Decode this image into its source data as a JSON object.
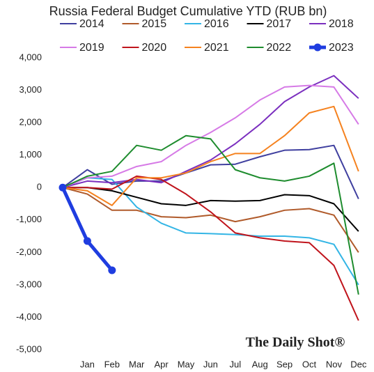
{
  "chart_data": {
    "type": "line",
    "title": "Russia Federal Budget Cumulative YTD (RUB bn)",
    "watermark": "The Daily Shot®",
    "categories": [
      null,
      "Jan",
      "Feb",
      "Mar",
      "Apr",
      "May",
      "Jun",
      "Jul",
      "Aug",
      "Sep",
      "Oct",
      "Nov",
      "Dec"
    ],
    "ylim": [
      -5000,
      4000
    ],
    "yticks": [
      {
        "value": -5000,
        "label": "-5,000"
      },
      {
        "value": -4000,
        "label": "-4,000"
      },
      {
        "value": -3000,
        "label": "-3,000"
      },
      {
        "value": -2000,
        "label": "-2,000"
      },
      {
        "value": -1000,
        "label": "-1,000"
      },
      0,
      {
        "value": 1000,
        "label": "1,000"
      },
      {
        "value": 2000,
        "label": "2,000"
      },
      {
        "value": 3000,
        "label": "3,000"
      },
      {
        "value": 4000,
        "label": "4,000"
      }
    ],
    "grid": false,
    "series": [
      {
        "name": "2014",
        "color": "#3f3f9f",
        "values": [
          0,
          550,
          100,
          200,
          200,
          450,
          700,
          720,
          950,
          1150,
          1170,
          1300,
          -350
        ]
      },
      {
        "name": "2015",
        "color": "#b05a2a",
        "values": [
          0,
          -200,
          -700,
          -700,
          -900,
          -930,
          -850,
          -1050,
          -900,
          -700,
          -650,
          -850,
          -2000
        ]
      },
      {
        "name": "2016",
        "color": "#33b5e5",
        "values": [
          0,
          300,
          250,
          -600,
          -1100,
          -1400,
          -1420,
          -1450,
          -1500,
          -1500,
          -1550,
          -1750,
          -3000
        ]
      },
      {
        "name": "2017",
        "color": "#000000",
        "values": [
          0,
          0,
          -100,
          -300,
          -500,
          -550,
          -400,
          -420,
          -400,
          -220,
          -250,
          -500,
          -1350
        ]
      },
      {
        "name": "2018",
        "color": "#7b2fbf",
        "values": [
          0,
          200,
          150,
          250,
          150,
          500,
          850,
          1350,
          1950,
          2650,
          3100,
          3450,
          2750
        ]
      },
      {
        "name": "2019",
        "color": "#d67ae6",
        "values": [
          0,
          300,
          350,
          650,
          800,
          1300,
          1700,
          2150,
          2700,
          3100,
          3150,
          3100,
          1950
        ]
      },
      {
        "name": "2020",
        "color": "#c0141c",
        "values": [
          0,
          0,
          -50,
          350,
          250,
          -200,
          -750,
          -1400,
          -1550,
          -1650,
          -1700,
          -2400,
          -4100
        ]
      },
      {
        "name": "2021",
        "color": "#f5821f",
        "values": [
          0,
          -100,
          -550,
          300,
          300,
          450,
          800,
          1050,
          1050,
          1600,
          2300,
          2500,
          500
        ]
      },
      {
        "name": "2022",
        "color": "#1e8c2e",
        "values": [
          0,
          350,
          500,
          1300,
          1150,
          1600,
          1500,
          550,
          300,
          200,
          350,
          750,
          -3300
        ]
      },
      {
        "name": "2023",
        "color": "#1f3de0",
        "values": [
          0,
          -1650,
          -2550,
          null,
          null,
          null,
          null,
          null,
          null,
          null,
          null,
          null,
          null
        ]
      }
    ]
  }
}
